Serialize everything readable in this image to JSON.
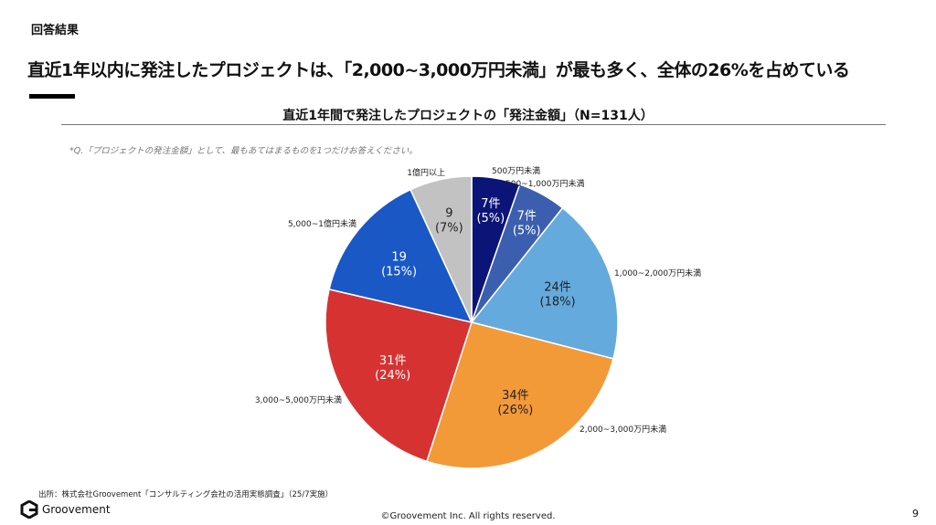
{
  "section_label": "回答結果",
  "headline": "直近1年以内に発注したプロジェクトは、「2,000~3,000万円未満」が最も多く、全体の26%を占めている",
  "question_note": "*Q.「プロジェクトの発注金額」として、最もあてはまるものを1つだけお答えください。",
  "source": "出所：株式会社Groovement「コンサルティング会社の活用実態調査」（25/7実施）",
  "logo_text": "Groovement",
  "copyright": "©Groovement Inc. All rights reserved.",
  "page_number": "9",
  "chart_data": {
    "type": "pie",
    "title": "直近1年間で発注したプロジェクトの「発注金額」（N=131人）",
    "start": "top, clockwise",
    "slices": [
      {
        "label": "500万円未満",
        "value": 7,
        "percent": 5,
        "value_label": "7件",
        "percent_label": "(5%)",
        "color": "#0b1577"
      },
      {
        "label": "500~1,000万円未満",
        "value": 7,
        "percent": 5,
        "value_label": "7件",
        "percent_label": "(5%)",
        "color": "#3b5fae"
      },
      {
        "label": "1,000~2,000万円未満",
        "value": 24,
        "percent": 18,
        "value_label": "24件",
        "percent_label": "(18%)",
        "color": "#65aadd"
      },
      {
        "label": "2,000~3,000万円未満",
        "value": 34,
        "percent": 26,
        "value_label": "34件",
        "percent_label": "(26%)",
        "color": "#f39a38"
      },
      {
        "label": "3,000~5,000万円未満",
        "value": 31,
        "percent": 24,
        "value_label": "31件",
        "percent_label": "(24%)",
        "color": "#d63232"
      },
      {
        "label": "5,000~1億円未満",
        "value": 19,
        "percent": 15,
        "value_label": "19",
        "percent_label": "(15%)",
        "color": "#1a58c6"
      },
      {
        "label": "1億円以上",
        "value": 9,
        "percent": 7,
        "value_label": "9",
        "percent_label": "(7%)",
        "color": "#c2c2c2"
      }
    ]
  }
}
